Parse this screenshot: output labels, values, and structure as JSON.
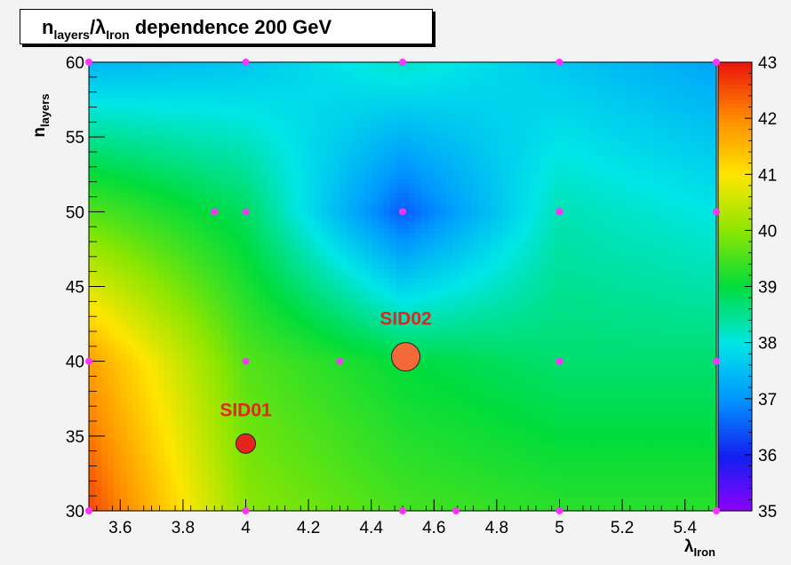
{
  "chart_data": {
    "type": "heatmap",
    "title": {
      "prefix": "n",
      "prefix_sub": "layers",
      "sep": "/λ",
      "sep_sub": "Iron",
      "suffix": " dependence 200 GeV"
    },
    "xlabel": {
      "main": "λ",
      "sub": "Iron"
    },
    "ylabel": {
      "main": "n",
      "sub": "layers"
    },
    "xlim": [
      3.5,
      5.5
    ],
    "ylim": [
      30,
      60
    ],
    "x_ticks": [
      "3.6",
      "3.8",
      "4",
      "4.2",
      "4.4",
      "4.6",
      "4.8",
      "5",
      "5.2",
      "5.4"
    ],
    "y_ticks": [
      "30",
      "35",
      "40",
      "45",
      "50",
      "55",
      "60"
    ],
    "z_range": [
      35,
      43
    ],
    "z_ticks": [
      "35",
      "36",
      "37",
      "38",
      "39",
      "40",
      "41",
      "42",
      "43"
    ],
    "grid_points": [
      {
        "x": 3.5,
        "y": 30,
        "z": 42.6
      },
      {
        "x": 4.0,
        "y": 30,
        "z": 40.0
      },
      {
        "x": 4.5,
        "y": 30,
        "z": 39.5
      },
      {
        "x": 5.0,
        "y": 30,
        "z": 39.3
      },
      {
        "x": 5.5,
        "y": 30,
        "z": 39.3
      },
      {
        "x": 3.5,
        "y": 40,
        "z": 41.8
      },
      {
        "x": 4.0,
        "y": 40,
        "z": 39.6
      },
      {
        "x": 4.5,
        "y": 40,
        "z": 39.0
      },
      {
        "x": 5.0,
        "y": 40,
        "z": 38.7
      },
      {
        "x": 5.5,
        "y": 40,
        "z": 38.7
      },
      {
        "x": 3.5,
        "y": 50,
        "z": 39.6
      },
      {
        "x": 4.0,
        "y": 50,
        "z": 38.8
      },
      {
        "x": 4.5,
        "y": 50,
        "z": 36.5
      },
      {
        "x": 5.0,
        "y": 50,
        "z": 38.3
      },
      {
        "x": 5.5,
        "y": 50,
        "z": 38.0
      },
      {
        "x": 3.5,
        "y": 60,
        "z": 37.4
      },
      {
        "x": 4.0,
        "y": 60,
        "z": 37.6
      },
      {
        "x": 4.5,
        "y": 60,
        "z": 38.2
      },
      {
        "x": 5.0,
        "y": 60,
        "z": 37.6
      },
      {
        "x": 5.5,
        "y": 60,
        "z": 37.2
      }
    ],
    "sample_points": [
      [
        3.5,
        30
      ],
      [
        4.0,
        30
      ],
      [
        4.5,
        30
      ],
      [
        4.67,
        30
      ],
      [
        5.0,
        30
      ],
      [
        5.5,
        30
      ],
      [
        3.5,
        40
      ],
      [
        4.0,
        40
      ],
      [
        4.3,
        40
      ],
      [
        5.0,
        40
      ],
      [
        5.5,
        40
      ],
      [
        3.9,
        50
      ],
      [
        4.0,
        50
      ],
      [
        4.5,
        50
      ],
      [
        5.0,
        50
      ],
      [
        5.5,
        50
      ],
      [
        3.5,
        60
      ],
      [
        4.0,
        60
      ],
      [
        4.5,
        60
      ],
      [
        5.0,
        60
      ],
      [
        5.5,
        60
      ]
    ],
    "annotations": [
      {
        "label": "SID01",
        "x": 4.0,
        "y": 34.5,
        "color": "#e8231a",
        "size": "small"
      },
      {
        "label": "SID02",
        "x": 4.51,
        "y": 40.3,
        "color": "#f4693a",
        "size": "large"
      }
    ],
    "marker_color": "#ff33ff"
  }
}
